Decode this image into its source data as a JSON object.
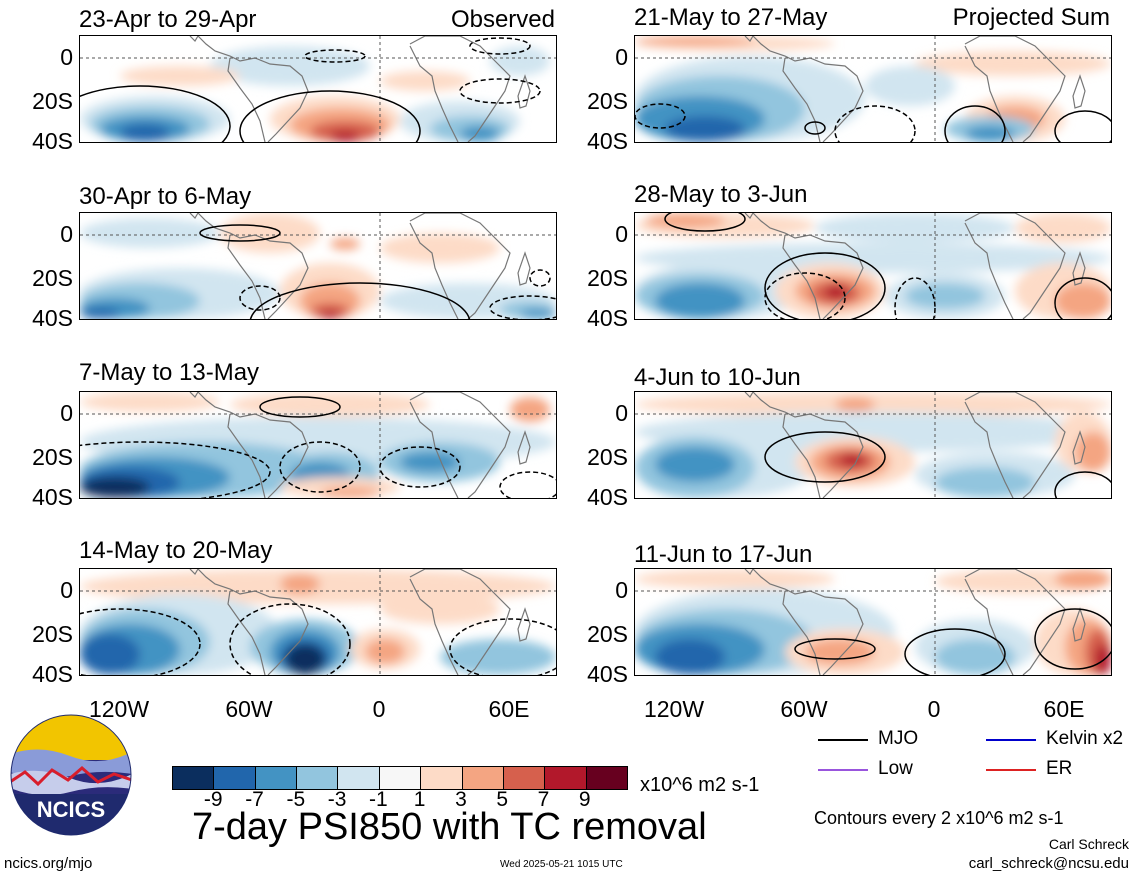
{
  "panels": [
    {
      "title": "23-Apr to 29-Apr",
      "tag": "Observed",
      "kind": "a"
    },
    {
      "title": "30-Apr to 6-May",
      "tag": "",
      "kind": "b"
    },
    {
      "title": "7-May to 13-May",
      "tag": "",
      "kind": "c"
    },
    {
      "title": "14-May to 20-May",
      "tag": "",
      "kind": "d"
    },
    {
      "title": "21-May to 27-May",
      "tag": "Projected Sum",
      "kind": "e"
    },
    {
      "title": "28-May to 3-Jun",
      "tag": "",
      "kind": "f"
    },
    {
      "title": "4-Jun to 10-Jun",
      "tag": "",
      "kind": "g"
    },
    {
      "title": "11-Jun to 17-Jun",
      "tag": "",
      "kind": "h"
    }
  ],
  "lat_labels": [
    "0",
    "20S",
    "40S"
  ],
  "lon_labels": [
    "120W",
    "60W",
    "0",
    "60E"
  ],
  "colorbar": {
    "colors": [
      "#0b2e5e",
      "#2166ac",
      "#4393c3",
      "#92c5de",
      "#d1e5f0",
      "#f7f7f7",
      "#fddbc7",
      "#f4a582",
      "#d6604d",
      "#b2182b",
      "#67001f"
    ],
    "labels": [
      "-9",
      "-7",
      "-5",
      "-3",
      "-1",
      "1",
      "3",
      "5",
      "7",
      "9"
    ],
    "units": "x10^6 m2 s-1"
  },
  "legend": {
    "items": [
      {
        "label": "MJO",
        "color": "#000000"
      },
      {
        "label": "Kelvin x2",
        "color": "#0000cc"
      },
      {
        "label": "Low",
        "color": "#9955dd"
      },
      {
        "label": "ER",
        "color": "#dd2222"
      }
    ],
    "contours": "Contours every 2 x10^6 m2 s-1"
  },
  "main_title": "7-day PSI850 with TC removal",
  "footer": {
    "left": "ncics.org/mjo",
    "center": "Wed 2025-05-21 1015 UTC",
    "author": "Carl Schreck",
    "email": "carl_schreck@ncsu.edu"
  },
  "logo_text": "NCICS"
}
